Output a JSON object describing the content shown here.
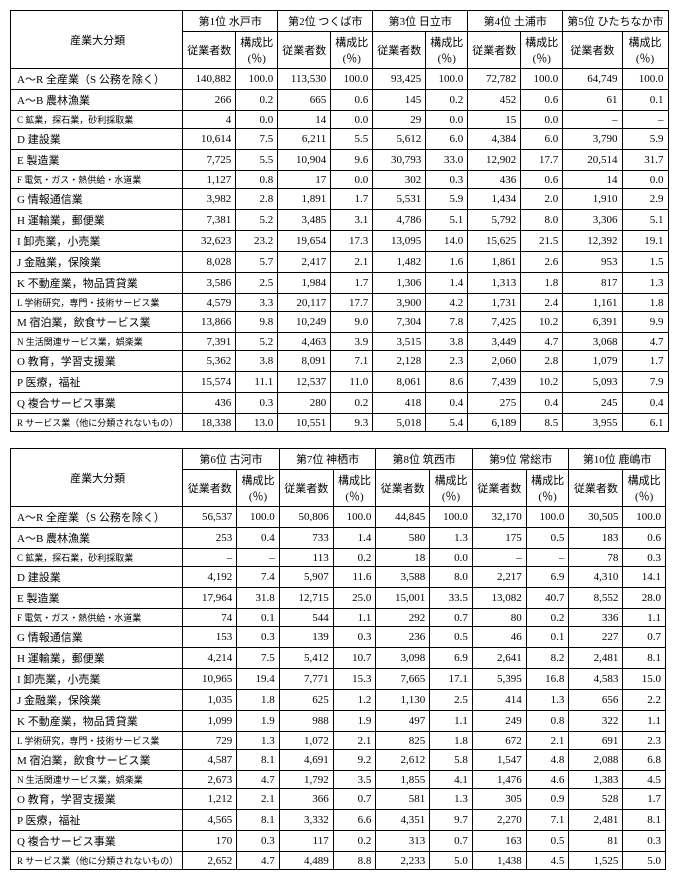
{
  "header_main": "産業大分類",
  "sub_workers": "従業者数",
  "sub_ratio": "構成比(％)",
  "tables": [
    {
      "cities": [
        "第1位 水戸市",
        "第2位 つくば市",
        "第3位 日立市",
        "第4位 土浦市",
        "第5位 ひたちなか市"
      ],
      "rows": [
        {
          "label": "A～R 全産業（S 公務を除く）",
          "v": [
            [
              "140,882",
              "100.0"
            ],
            [
              "113,530",
              "100.0"
            ],
            [
              "93,425",
              "100.0"
            ],
            [
              "72,782",
              "100.0"
            ],
            [
              "64,749",
              "100.0"
            ]
          ]
        },
        {
          "label": "A～B 農林漁業",
          "v": [
            [
              "266",
              "0.2"
            ],
            [
              "665",
              "0.6"
            ],
            [
              "145",
              "0.2"
            ],
            [
              "452",
              "0.6"
            ],
            [
              "61",
              "0.1"
            ]
          ]
        },
        {
          "label": "C 鉱業，探石業，砂利採取業",
          "cls": "sub",
          "v": [
            [
              "4",
              "0.0"
            ],
            [
              "14",
              "0.0"
            ],
            [
              "29",
              "0.0"
            ],
            [
              "15",
              "0.0"
            ],
            [
              "–",
              "–"
            ]
          ]
        },
        {
          "label": "D 建設業",
          "v": [
            [
              "10,614",
              "7.5"
            ],
            [
              "6,211",
              "5.5"
            ],
            [
              "5,612",
              "6.0"
            ],
            [
              "4,384",
              "6.0"
            ],
            [
              "3,790",
              "5.9"
            ]
          ]
        },
        {
          "label": "E 製造業",
          "v": [
            [
              "7,725",
              "5.5"
            ],
            [
              "10,904",
              "9.6"
            ],
            [
              "30,793",
              "33.0"
            ],
            [
              "12,902",
              "17.7"
            ],
            [
              "20,514",
              "31.7"
            ]
          ]
        },
        {
          "label": "F 電気・ガス・熱供給・水道業",
          "cls": "sub",
          "v": [
            [
              "1,127",
              "0.8"
            ],
            [
              "17",
              "0.0"
            ],
            [
              "302",
              "0.3"
            ],
            [
              "436",
              "0.6"
            ],
            [
              "14",
              "0.0"
            ]
          ]
        },
        {
          "label": "G 情報通信業",
          "v": [
            [
              "3,982",
              "2.8"
            ],
            [
              "1,891",
              "1.7"
            ],
            [
              "5,531",
              "5.9"
            ],
            [
              "1,434",
              "2.0"
            ],
            [
              "1,910",
              "2.9"
            ]
          ]
        },
        {
          "label": "H 運輸業，郵便業",
          "v": [
            [
              "7,381",
              "5.2"
            ],
            [
              "3,485",
              "3.1"
            ],
            [
              "4,786",
              "5.1"
            ],
            [
              "5,792",
              "8.0"
            ],
            [
              "3,306",
              "5.1"
            ]
          ]
        },
        {
          "label": "I 卸売業，小売業",
          "v": [
            [
              "32,623",
              "23.2"
            ],
            [
              "19,654",
              "17.3"
            ],
            [
              "13,095",
              "14.0"
            ],
            [
              "15,625",
              "21.5"
            ],
            [
              "12,392",
              "19.1"
            ]
          ]
        },
        {
          "label": "J 金融業，保険業",
          "v": [
            [
              "8,028",
              "5.7"
            ],
            [
              "2,417",
              "2.1"
            ],
            [
              "1,482",
              "1.6"
            ],
            [
              "1,861",
              "2.6"
            ],
            [
              "953",
              "1.5"
            ]
          ]
        },
        {
          "label": "K 不動産業，物品賃貸業",
          "v": [
            [
              "3,586",
              "2.5"
            ],
            [
              "1,984",
              "1.7"
            ],
            [
              "1,306",
              "1.4"
            ],
            [
              "1,313",
              "1.8"
            ],
            [
              "817",
              "1.3"
            ]
          ]
        },
        {
          "label": "L 学術研究，専門・技術サービス業",
          "cls": "sub",
          "v": [
            [
              "4,579",
              "3.3"
            ],
            [
              "20,117",
              "17.7"
            ],
            [
              "3,900",
              "4.2"
            ],
            [
              "1,731",
              "2.4"
            ],
            [
              "1,161",
              "1.8"
            ]
          ]
        },
        {
          "label": "M 宿泊業，飲食サービス業",
          "v": [
            [
              "13,866",
              "9.8"
            ],
            [
              "10,249",
              "9.0"
            ],
            [
              "7,304",
              "7.8"
            ],
            [
              "7,425",
              "10.2"
            ],
            [
              "6,391",
              "9.9"
            ]
          ]
        },
        {
          "label": "N 生活関連サービス業，娯楽業",
          "cls": "sub",
          "v": [
            [
              "7,391",
              "5.2"
            ],
            [
              "4,463",
              "3.9"
            ],
            [
              "3,515",
              "3.8"
            ],
            [
              "3,449",
              "4.7"
            ],
            [
              "3,068",
              "4.7"
            ]
          ]
        },
        {
          "label": "O 教育，学習支援業",
          "v": [
            [
              "5,362",
              "3.8"
            ],
            [
              "8,091",
              "7.1"
            ],
            [
              "2,128",
              "2.3"
            ],
            [
              "2,060",
              "2.8"
            ],
            [
              "1,079",
              "1.7"
            ]
          ]
        },
        {
          "label": "P 医療，福祉",
          "v": [
            [
              "15,574",
              "11.1"
            ],
            [
              "12,537",
              "11.0"
            ],
            [
              "8,061",
              "8.6"
            ],
            [
              "7,439",
              "10.2"
            ],
            [
              "5,093",
              "7.9"
            ]
          ]
        },
        {
          "label": "Q 複合サービス事業",
          "v": [
            [
              "436",
              "0.3"
            ],
            [
              "280",
              "0.2"
            ],
            [
              "418",
              "0.4"
            ],
            [
              "275",
              "0.4"
            ],
            [
              "245",
              "0.4"
            ]
          ]
        },
        {
          "label": "R サービス業（他に分類されないもの）",
          "cls": "sub",
          "v": [
            [
              "18,338",
              "13.0"
            ],
            [
              "10,551",
              "9.3"
            ],
            [
              "5,018",
              "5.4"
            ],
            [
              "6,189",
              "8.5"
            ],
            [
              "3,955",
              "6.1"
            ]
          ]
        }
      ]
    },
    {
      "cities": [
        "第6位 古河市",
        "第7位 神栖市",
        "第8位 筑西市",
        "第9位 常総市",
        "第10位 鹿嶋市"
      ],
      "rows": [
        {
          "label": "A～R 全産業（S 公務を除く）",
          "v": [
            [
              "56,537",
              "100.0"
            ],
            [
              "50,806",
              "100.0"
            ],
            [
              "44,845",
              "100.0"
            ],
            [
              "32,170",
              "100.0"
            ],
            [
              "30,505",
              "100.0"
            ]
          ]
        },
        {
          "label": "A～B 農林漁業",
          "v": [
            [
              "253",
              "0.4"
            ],
            [
              "733",
              "1.4"
            ],
            [
              "580",
              "1.3"
            ],
            [
              "175",
              "0.5"
            ],
            [
              "183",
              "0.6"
            ]
          ]
        },
        {
          "label": "C 鉱業，探石業，砂利採取業",
          "cls": "sub",
          "v": [
            [
              "–",
              "–"
            ],
            [
              "113",
              "0.2"
            ],
            [
              "18",
              "0.0"
            ],
            [
              "–",
              "–"
            ],
            [
              "78",
              "0.3"
            ]
          ]
        },
        {
          "label": "D 建設業",
          "v": [
            [
              "4,192",
              "7.4"
            ],
            [
              "5,907",
              "11.6"
            ],
            [
              "3,588",
              "8.0"
            ],
            [
              "2,217",
              "6.9"
            ],
            [
              "4,310",
              "14.1"
            ]
          ]
        },
        {
          "label": "E 製造業",
          "v": [
            [
              "17,964",
              "31.8"
            ],
            [
              "12,715",
              "25.0"
            ],
            [
              "15,001",
              "33.5"
            ],
            [
              "13,082",
              "40.7"
            ],
            [
              "8,552",
              "28.0"
            ]
          ]
        },
        {
          "label": "F 電気・ガス・熱供給・水道業",
          "cls": "sub",
          "v": [
            [
              "74",
              "0.1"
            ],
            [
              "544",
              "1.1"
            ],
            [
              "292",
              "0.7"
            ],
            [
              "80",
              "0.2"
            ],
            [
              "336",
              "1.1"
            ]
          ]
        },
        {
          "label": "G 情報通信業",
          "v": [
            [
              "153",
              "0.3"
            ],
            [
              "139",
              "0.3"
            ],
            [
              "236",
              "0.5"
            ],
            [
              "46",
              "0.1"
            ],
            [
              "227",
              "0.7"
            ]
          ]
        },
        {
          "label": "H 運輸業，郵便業",
          "v": [
            [
              "4,214",
              "7.5"
            ],
            [
              "5,412",
              "10.7"
            ],
            [
              "3,098",
              "6.9"
            ],
            [
              "2,641",
              "8.2"
            ],
            [
              "2,481",
              "8.1"
            ]
          ]
        },
        {
          "label": "I 卸売業，小売業",
          "v": [
            [
              "10,965",
              "19.4"
            ],
            [
              "7,771",
              "15.3"
            ],
            [
              "7,665",
              "17.1"
            ],
            [
              "5,395",
              "16.8"
            ],
            [
              "4,583",
              "15.0"
            ]
          ]
        },
        {
          "label": "J 金融業，保険業",
          "v": [
            [
              "1,035",
              "1.8"
            ],
            [
              "625",
              "1.2"
            ],
            [
              "1,130",
              "2.5"
            ],
            [
              "414",
              "1.3"
            ],
            [
              "656",
              "2.2"
            ]
          ]
        },
        {
          "label": "K 不動産業，物品賃貸業",
          "v": [
            [
              "1,099",
              "1.9"
            ],
            [
              "988",
              "1.9"
            ],
            [
              "497",
              "1.1"
            ],
            [
              "249",
              "0.8"
            ],
            [
              "322",
              "1.1"
            ]
          ]
        },
        {
          "label": "L 学術研究，専門・技術サービス業",
          "cls": "sub",
          "v": [
            [
              "729",
              "1.3"
            ],
            [
              "1,072",
              "2.1"
            ],
            [
              "825",
              "1.8"
            ],
            [
              "672",
              "2.1"
            ],
            [
              "691",
              "2.3"
            ]
          ]
        },
        {
          "label": "M 宿泊業，飲食サービス業",
          "v": [
            [
              "4,587",
              "8.1"
            ],
            [
              "4,691",
              "9.2"
            ],
            [
              "2,612",
              "5.8"
            ],
            [
              "1,547",
              "4.8"
            ],
            [
              "2,088",
              "6.8"
            ]
          ]
        },
        {
          "label": "N 生活関連サービス業，娯楽業",
          "cls": "sub",
          "v": [
            [
              "2,673",
              "4.7"
            ],
            [
              "1,792",
              "3.5"
            ],
            [
              "1,855",
              "4.1"
            ],
            [
              "1,476",
              "4.6"
            ],
            [
              "1,383",
              "4.5"
            ]
          ]
        },
        {
          "label": "O 教育，学習支援業",
          "v": [
            [
              "1,212",
              "2.1"
            ],
            [
              "366",
              "0.7"
            ],
            [
              "581",
              "1.3"
            ],
            [
              "305",
              "0.9"
            ],
            [
              "528",
              "1.7"
            ]
          ]
        },
        {
          "label": "P 医療，福祉",
          "v": [
            [
              "4,565",
              "8.1"
            ],
            [
              "3,332",
              "6.6"
            ],
            [
              "4,351",
              "9.7"
            ],
            [
              "2,270",
              "7.1"
            ],
            [
              "2,481",
              "8.1"
            ]
          ]
        },
        {
          "label": "Q 複合サービス事業",
          "v": [
            [
              "170",
              "0.3"
            ],
            [
              "117",
              "0.2"
            ],
            [
              "313",
              "0.7"
            ],
            [
              "163",
              "0.5"
            ],
            [
              "81",
              "0.3"
            ]
          ]
        },
        {
          "label": "R サービス業（他に分類されないもの）",
          "cls": "sub",
          "v": [
            [
              "2,652",
              "4.7"
            ],
            [
              "4,489",
              "8.8"
            ],
            [
              "2,233",
              "5.0"
            ],
            [
              "1,438",
              "4.5"
            ],
            [
              "1,525",
              "5.0"
            ]
          ]
        }
      ]
    }
  ],
  "col_widths": {
    "workers": 58,
    "ratio": 42
  }
}
